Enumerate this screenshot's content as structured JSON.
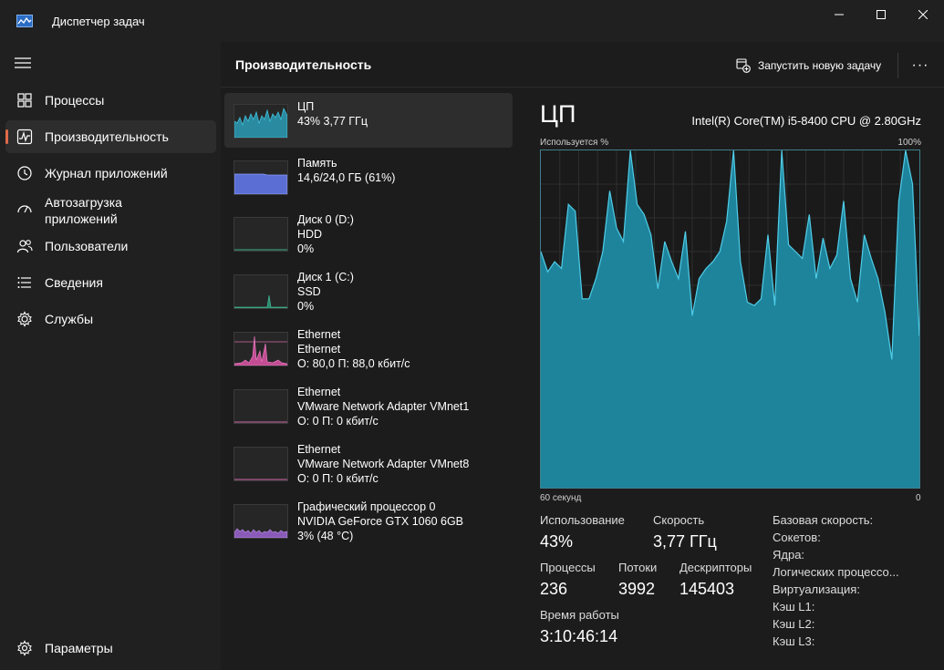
{
  "window": {
    "title": "Диспетчер задач",
    "controls": {
      "minimize": "minimize-icon",
      "maximize": "maximize-icon",
      "close": "close-icon"
    }
  },
  "sidebar": {
    "items": [
      {
        "label": "Процессы",
        "icon": "processes-icon"
      },
      {
        "label": "Производительность",
        "icon": "performance-icon",
        "active": true
      },
      {
        "label": "Журнал приложений",
        "icon": "history-icon"
      },
      {
        "label": "Автозагрузка приложений",
        "line1": "Автозагрузка",
        "line2": "приложений",
        "icon": "startup-icon"
      },
      {
        "label": "Пользователи",
        "icon": "users-icon"
      },
      {
        "label": "Сведения",
        "icon": "details-icon"
      },
      {
        "label": "Службы",
        "icon": "services-icon"
      }
    ],
    "settings": {
      "label": "Параметры",
      "icon": "gear-icon"
    }
  },
  "header": {
    "title": "Производительность",
    "new_task": "Запустить новую задачу",
    "more": "···"
  },
  "resources": [
    {
      "name": "ЦП",
      "line2": "43% 3,77 ГГц",
      "line3": ""
    },
    {
      "name": "Память",
      "line2": "14,6/24,0 ГБ (61%)",
      "line3": ""
    },
    {
      "name": "Диск 0 (D:)",
      "line2": "HDD",
      "line3": "0%"
    },
    {
      "name": "Диск 1 (C:)",
      "line2": "SSD",
      "line3": "0%"
    },
    {
      "name": "Ethernet",
      "line2": "Ethernet",
      "line3": "О: 80,0 П: 88,0 кбит/с"
    },
    {
      "name": "Ethernet",
      "line2": "VMware Network Adapter VMnet1",
      "line3": "О: 0 П: 0 кбит/с"
    },
    {
      "name": "Ethernet",
      "line2": "VMware Network Adapter VMnet8",
      "line3": "О: 0 П: 0 кбит/с"
    },
    {
      "name": "Графический процессор 0",
      "line2": "NVIDIA GeForce GTX 1060 6GB",
      "line3": "3% (48 °C)"
    }
  ],
  "detail": {
    "title": "ЦП",
    "model": "Intel(R) Core(TM) i5-8400 CPU @ 2.80GHz",
    "y_label": "Используется %",
    "y_max": "100%",
    "x_left": "60 секунд",
    "x_right": "0",
    "stats": {
      "usage_label": "Использование",
      "usage_value": "43%",
      "speed_label": "Скорость",
      "speed_value": "3,77 ГГц",
      "processes_label": "Процессы",
      "processes_value": "236",
      "threads_label": "Потоки",
      "threads_value": "3992",
      "handles_label": "Дескрипторы",
      "handles_value": "145403",
      "uptime_label": "Время работы",
      "uptime_value": "3:10:46:14"
    },
    "info": {
      "base_speed": "Базовая скорость:",
      "sockets": "Сокетов:",
      "cores": "Ядра:",
      "logical": "Логических процессо...",
      "virtualization": "Виртуализация:",
      "l1": "Кэш L1:",
      "l2": "Кэш L2:",
      "l3": "Кэш L3:"
    }
  },
  "chart_data": {
    "type": "area",
    "ylabel": "Используется %",
    "ylim": [
      0,
      100
    ],
    "xlim": [
      60,
      0
    ],
    "x_unit": "seconds ago",
    "series": [
      {
        "values": [
          70,
          64,
          67,
          65,
          84,
          82,
          56,
          56,
          62,
          70,
          88,
          77,
          73,
          100,
          84,
          81,
          75,
          59,
          73,
          67,
          62,
          76,
          51,
          62,
          65,
          67,
          70,
          79,
          100,
          67,
          55,
          54,
          56,
          75,
          54,
          100,
          72,
          70,
          68,
          81,
          62,
          74,
          65,
          69,
          85,
          62,
          55,
          75,
          68,
          62,
          52,
          38,
          85,
          100,
          90,
          45
        ]
      }
    ],
    "color": "#3fa8c1"
  }
}
